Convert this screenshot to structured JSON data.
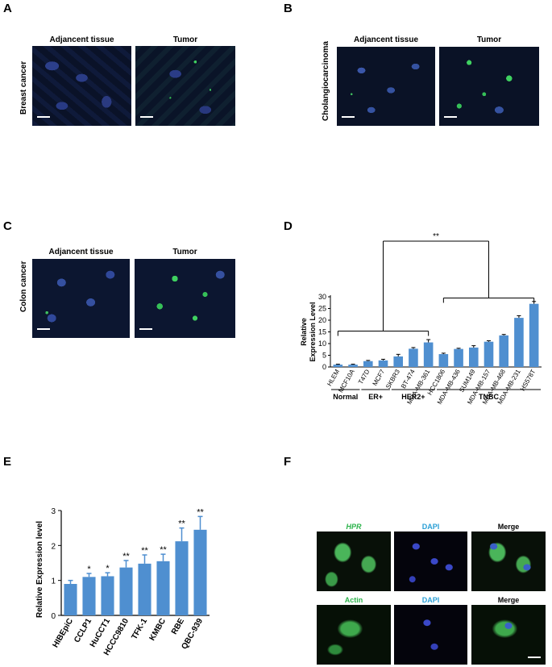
{
  "panels": {
    "A": {
      "label": "A",
      "row_label": "Breast cancer",
      "col1": "Adjancent  tissue",
      "col2": "Tumor"
    },
    "B": {
      "label": "B",
      "row_label": "Cholangiocarcinoma",
      "col1": "Adjancent  tissue",
      "col2": "Tumor"
    },
    "C": {
      "label": "C",
      "row_label": "Colon cancer",
      "col1": "Adjancent  tissue",
      "col2": "Tumor"
    },
    "D": {
      "label": "D"
    },
    "E": {
      "label": "E"
    },
    "F": {
      "label": "F",
      "row1": [
        "HPR",
        "DAPI",
        "Merge"
      ],
      "row2": [
        "Actin",
        "DAPI",
        "Merge"
      ]
    }
  },
  "colors": {
    "bar": "#4f8fd0",
    "green_label": "#2bb34a",
    "blue_label": "#2a9fd6",
    "micro_bg": "#0a1020"
  },
  "chart_data": [
    {
      "type": "bar",
      "panel": "D",
      "ylabel": "Relative\nExpression Level",
      "ylim": [
        0,
        30
      ],
      "yticks": [
        0,
        5,
        10,
        15,
        20,
        25,
        30
      ],
      "categories": [
        "HLEM",
        "MCF10A",
        "T47D",
        "MCF7",
        "SKBR3",
        "BT-474",
        "MDA-MB-361",
        "HCC1806",
        "MDA-MB-436",
        "SUM149",
        "MDA-MB-157",
        "MDA-MB-468",
        "MDA-MB-231",
        "HS578T"
      ],
      "values": [
        1.0,
        1.0,
        2.5,
        2.8,
        4.5,
        7.8,
        10.5,
        5.5,
        7.7,
        8.3,
        10.8,
        13.5,
        21.0,
        27.0
      ],
      "errors": [
        0.2,
        0.2,
        0.3,
        0.5,
        0.9,
        0.5,
        1.2,
        0.4,
        0.3,
        0.8,
        0.4,
        0.4,
        0.9,
        1.0
      ],
      "groups": [
        {
          "name": "Normal",
          "start": 0,
          "end": 1
        },
        {
          "name": "ER+",
          "start": 2,
          "end": 3
        },
        {
          "name": "HER2+",
          "start": 4,
          "end": 6
        },
        {
          "name": "TNBC",
          "start": 7,
          "end": 13
        }
      ],
      "significance": "**"
    },
    {
      "type": "bar",
      "panel": "E",
      "ylabel": "Relative Expression level",
      "ylim": [
        0,
        3
      ],
      "yticks": [
        0,
        1,
        2,
        3
      ],
      "categories": [
        "HIBEpiC",
        "CCLP1",
        "HuCCT1",
        "HCCC9810",
        "TFK-1",
        "KMBC",
        "RBE",
        "QBC-939"
      ],
      "values": [
        0.9,
        1.1,
        1.12,
        1.37,
        1.48,
        1.55,
        2.12,
        2.45
      ],
      "errors": [
        0.1,
        0.1,
        0.1,
        0.2,
        0.25,
        0.2,
        0.38,
        0.38
      ],
      "stars": [
        "",
        "*",
        "*",
        "**",
        "**",
        "**",
        "**",
        "**"
      ]
    }
  ]
}
